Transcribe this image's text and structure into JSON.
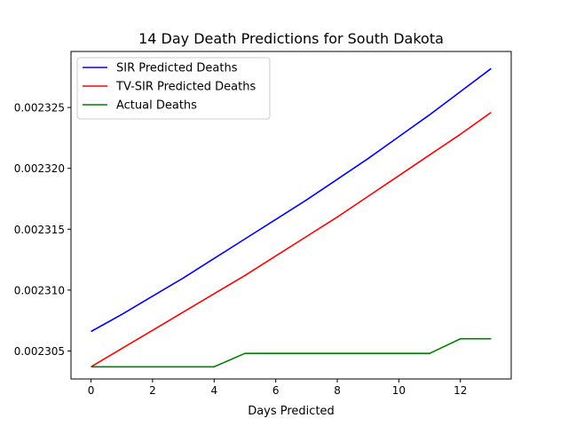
{
  "chart_data": {
    "type": "line",
    "title": "14 Day Death Predictions for South Dakota",
    "xlabel": "Days Predicted",
    "ylabel": "",
    "xlim": [
      -0.65,
      13.65
    ],
    "ylim": [
      0.0023027,
      0.0023296
    ],
    "x_ticks": [
      0,
      2,
      4,
      6,
      8,
      10,
      12
    ],
    "x_tick_labels": [
      "0",
      "2",
      "4",
      "6",
      "8",
      "10",
      "12"
    ],
    "y_ticks": [
      0.002305,
      0.00231,
      0.002315,
      0.00232,
      0.002325
    ],
    "y_tick_labels": [
      "0.002305",
      "0.002310",
      "0.002315",
      "0.002320",
      "0.002325"
    ],
    "grid": false,
    "legend_position": "upper left",
    "x": [
      0,
      1,
      2,
      3,
      4,
      5,
      6,
      7,
      8,
      9,
      10,
      11,
      12,
      13
    ],
    "series": [
      {
        "name": "SIR Predicted Deaths",
        "color": "#0000ff",
        "values": [
          0.0023066,
          0.002308,
          0.0023095,
          0.002311,
          0.0023126,
          0.0023142,
          0.0023158,
          0.0023174,
          0.0023191,
          0.0023208,
          0.0023226,
          0.0023244,
          0.0023263,
          0.0023282
        ]
      },
      {
        "name": "TV-SIR Predicted Deaths",
        "color": "#ff0000",
        "values": [
          0.0023037,
          0.0023052,
          0.0023067,
          0.0023082,
          0.0023097,
          0.0023112,
          0.0023128,
          0.0023144,
          0.002316,
          0.0023177,
          0.0023194,
          0.0023211,
          0.0023228,
          0.0023246
        ]
      },
      {
        "name": "Actual Deaths",
        "color": "#008000",
        "values": [
          0.0023037,
          0.0023037,
          0.0023037,
          0.0023037,
          0.0023037,
          0.0023048,
          0.0023048,
          0.0023048,
          0.0023048,
          0.0023048,
          0.0023048,
          0.0023048,
          0.002306,
          0.002306
        ]
      }
    ]
  }
}
